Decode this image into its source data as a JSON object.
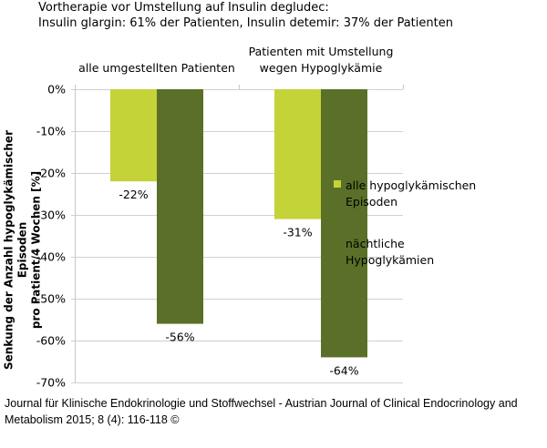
{
  "chart_data": {
    "type": "bar",
    "title_lines": [
      "Vortherapie vor Umstellung auf Insulin degludec:",
      "Insulin glargin: 61% der Patienten, Insulin detemir: 37% der Patienten"
    ],
    "categories": [
      [
        "alle umgestellten Patienten"
      ],
      [
        "Patienten mit Umstellung",
        "wegen Hypoglykämie"
      ]
    ],
    "series": [
      {
        "name": "alle hypoglykämischen Episoden",
        "legend_lines": [
          "alle hypoglykämischen",
          "Episoden"
        ],
        "color": "#c4d337",
        "values": [
          -22,
          -31
        ],
        "labels": [
          "-22%",
          "-31%"
        ]
      },
      {
        "name": "nächtliche Hypoglykämien",
        "legend_lines": [
          "nächtliche",
          "Hypoglykämien"
        ],
        "color": "#5a7028",
        "values": [
          -56,
          -64
        ],
        "labels": [
          "-56%",
          "-64%"
        ]
      }
    ],
    "ylabel_lines": [
      "Senkung der Anzahl hypoglykämischer Episoden",
      "pro Patient/4 Wochen [%]"
    ],
    "ylim": [
      -70,
      0
    ],
    "yticks": [
      0,
      -10,
      -20,
      -30,
      -40,
      -50,
      -60,
      -70
    ],
    "ytick_labels": [
      "0%",
      "-10%",
      "-20%",
      "-30%",
      "-40%",
      "-50%",
      "-60%",
      "-70%"
    ],
    "grid": true,
    "legend_position": "right"
  },
  "footer": "Journal für Klinische Endokrinologie und Stoffwechsel - Austrian Journal of Clinical Endocrinology and Metabolism 2015; 8 (4): 116-118 ©"
}
